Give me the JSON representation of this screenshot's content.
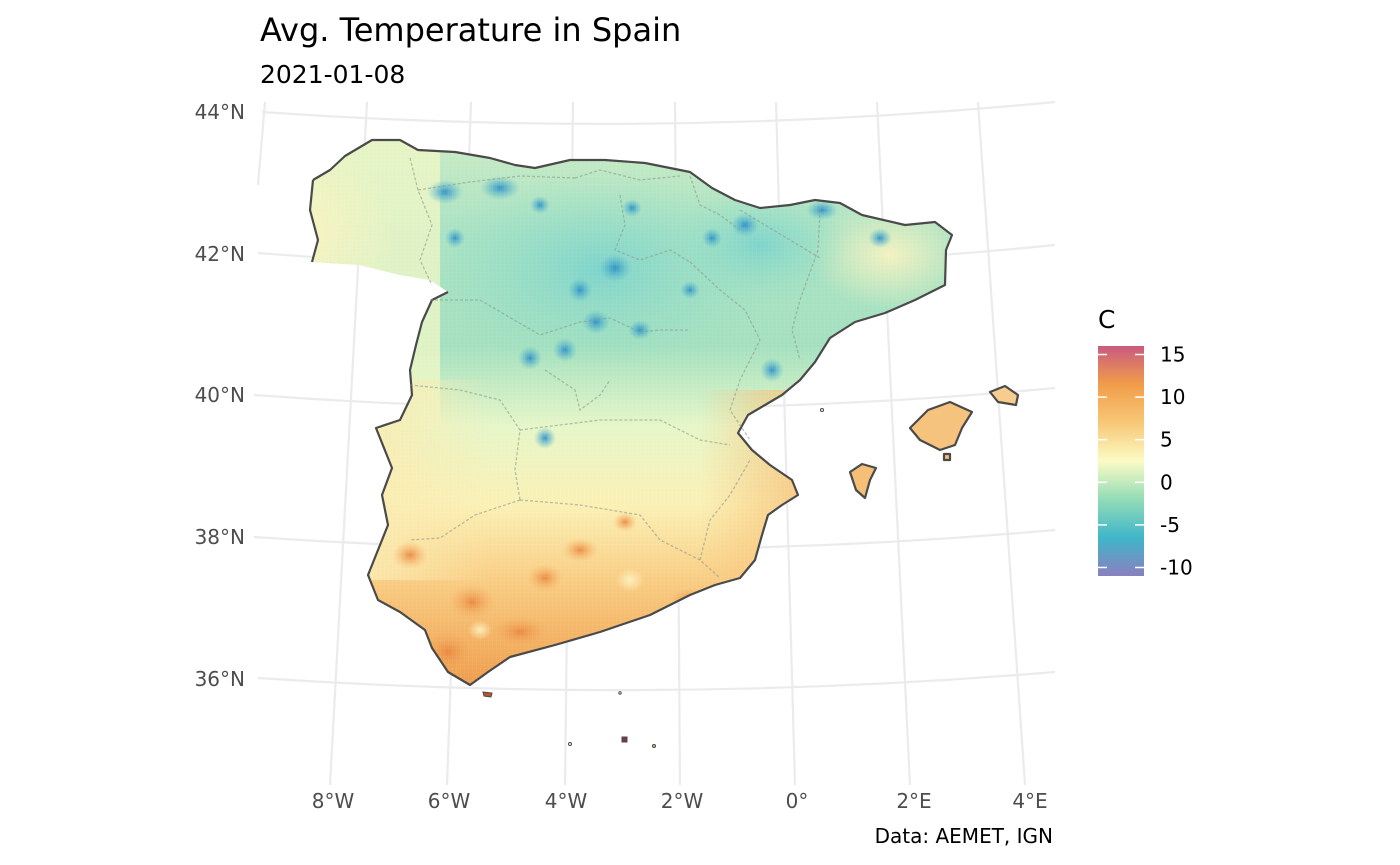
{
  "title": "Avg. Temperature in Spain",
  "subtitle": "2021-01-08",
  "caption": "Data: AEMET, IGN",
  "latitude_labels": [
    "44°N",
    "42°N",
    "40°N",
    "38°N",
    "36°N"
  ],
  "longitude_labels": [
    "8°W",
    "6°W",
    "4°W",
    "2°W",
    "0°",
    "2°E",
    "4°E"
  ],
  "legend": {
    "title": "C",
    "labels": [
      "15",
      "10",
      "5",
      "0",
      "-5",
      "-10"
    ],
    "min": -11,
    "max": 16,
    "colors": [
      "#8a7fbf",
      "#3fb6c9",
      "#93dcb7",
      "#fbfbc4",
      "#f8c777",
      "#f19d4a",
      "#c95a80"
    ]
  },
  "colors": {
    "graticule": "#ebebeb",
    "coastline": "#4a4a4a",
    "warm": "#f19d4a",
    "cold": "#3fb6c9"
  }
}
